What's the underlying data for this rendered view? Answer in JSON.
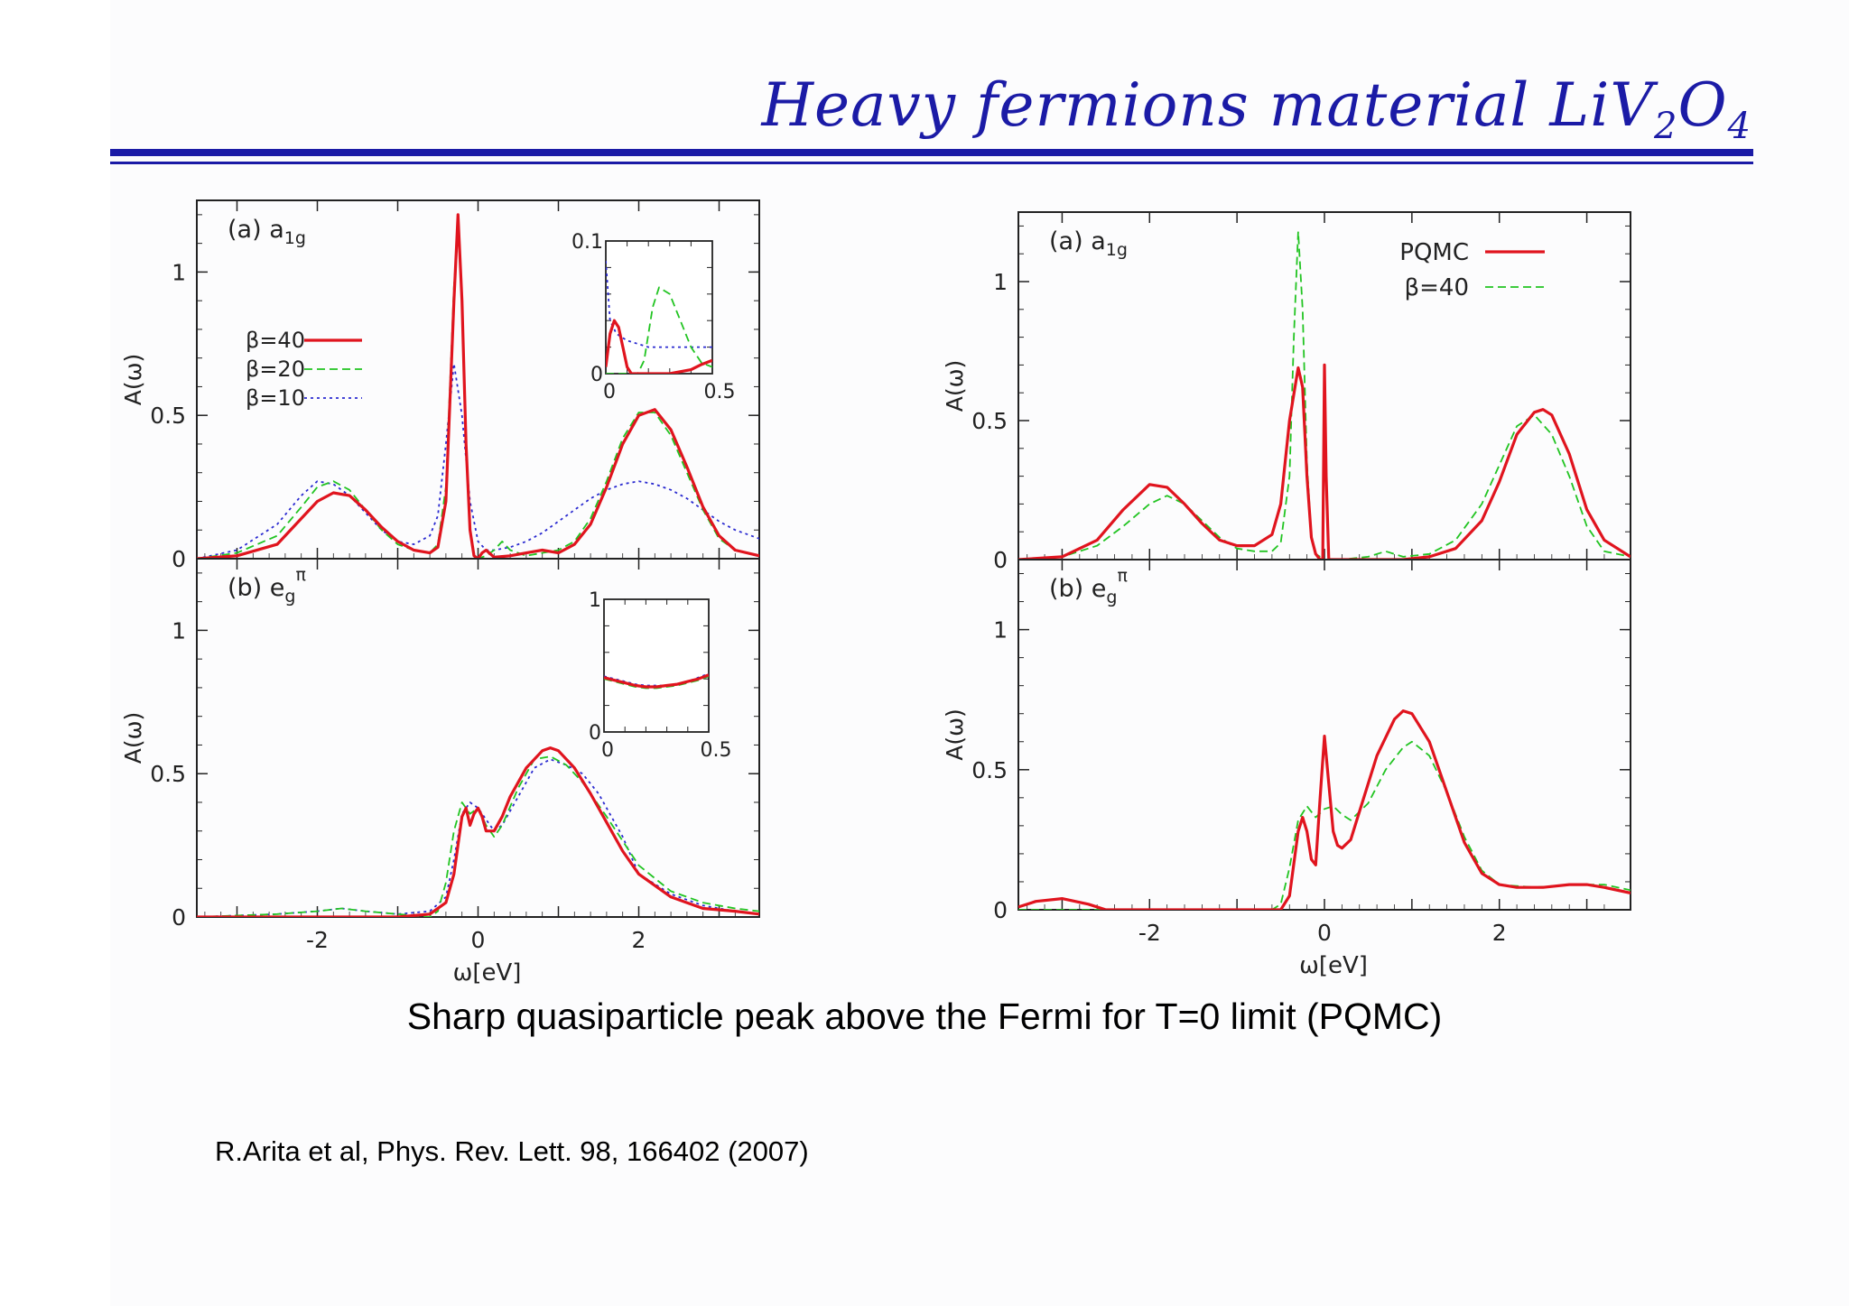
{
  "slide": {
    "title_main": "Heavy fermions material LiV",
    "title_sub1": "2",
    "title_mid": "O",
    "title_sub2": "4",
    "caption": "Sharp quasiparticle peak above the Fermi for T=0 limit (PQMC)",
    "reference": "R.Arita et al, Phys. Rev. Lett. 98, 166402 (2007)"
  },
  "colors": {
    "title": "#1b1ba6",
    "beta40": "#e0141e",
    "beta20": "#22c422",
    "beta10": "#2a2ad0",
    "pqmc": "#e0141e"
  },
  "chart_data": [
    {
      "id": "left-a1g",
      "type": "line",
      "panel_label": "(a) a",
      "panel_sub": "1g",
      "ylabel": "A(ω)",
      "xlim": [
        -3.5,
        3.5
      ],
      "ylim": [
        0,
        1.25
      ],
      "yticks": [
        "0",
        "0.5",
        "1"
      ],
      "legend": "left",
      "series": [
        {
          "name": "β=40",
          "style": "solid",
          "color": "#e0141e",
          "x": [
            -3.5,
            -3,
            -2.5,
            -2.2,
            -2,
            -1.8,
            -1.6,
            -1.4,
            -1.2,
            -1,
            -0.8,
            -0.6,
            -0.5,
            -0.4,
            -0.3,
            -0.25,
            -0.2,
            -0.15,
            -0.1,
            -0.05,
            0,
            0.05,
            0.1,
            0.2,
            0.4,
            0.6,
            0.8,
            1,
            1.2,
            1.4,
            1.6,
            1.8,
            2,
            2.2,
            2.4,
            2.6,
            2.8,
            3,
            3.2,
            3.5
          ],
          "y": [
            0,
            0.01,
            0.05,
            0.14,
            0.2,
            0.23,
            0.22,
            0.17,
            0.11,
            0.06,
            0.03,
            0.02,
            0.04,
            0.2,
            0.9,
            1.2,
            0.9,
            0.4,
            0.1,
            0.01,
            0,
            0.02,
            0.03,
            0.005,
            0.01,
            0.02,
            0.03,
            0.02,
            0.05,
            0.12,
            0.25,
            0.4,
            0.5,
            0.52,
            0.45,
            0.32,
            0.18,
            0.08,
            0.03,
            0.01
          ]
        },
        {
          "name": "β=20",
          "style": "dashed",
          "color": "#22c422",
          "x": [
            -3.5,
            -3,
            -2.5,
            -2.2,
            -2,
            -1.8,
            -1.6,
            -1.4,
            -1.2,
            -1,
            -0.8,
            -0.6,
            -0.5,
            -0.4,
            -0.3,
            -0.25,
            -0.2,
            -0.15,
            -0.1,
            -0.05,
            0,
            0.1,
            0.2,
            0.3,
            0.4,
            0.6,
            0.8,
            1,
            1.2,
            1.4,
            1.6,
            1.8,
            2,
            2.2,
            2.4,
            2.6,
            2.8,
            3,
            3.2,
            3.5
          ],
          "y": [
            0,
            0.02,
            0.08,
            0.18,
            0.25,
            0.27,
            0.24,
            0.17,
            0.1,
            0.05,
            0.03,
            0.02,
            0.05,
            0.25,
            0.95,
            1.15,
            0.9,
            0.4,
            0.1,
            0.01,
            0,
            0.01,
            0.03,
            0.06,
            0.03,
            0.01,
            0.02,
            0.03,
            0.06,
            0.14,
            0.27,
            0.42,
            0.51,
            0.51,
            0.43,
            0.3,
            0.17,
            0.07,
            0.03,
            0.01
          ]
        },
        {
          "name": "β=10",
          "style": "dotted",
          "color": "#2a2ad0",
          "x": [
            -3.5,
            -3,
            -2.5,
            -2.2,
            -2,
            -1.8,
            -1.6,
            -1.4,
            -1.2,
            -1,
            -0.8,
            -0.6,
            -0.5,
            -0.4,
            -0.3,
            -0.2,
            -0.1,
            0,
            0.1,
            0.2,
            0.4,
            0.6,
            0.8,
            1,
            1.2,
            1.4,
            1.6,
            1.8,
            2,
            2.2,
            2.4,
            2.6,
            2.8,
            3,
            3.2,
            3.5
          ],
          "y": [
            0,
            0.03,
            0.12,
            0.22,
            0.27,
            0.26,
            0.22,
            0.16,
            0.1,
            0.06,
            0.05,
            0.08,
            0.15,
            0.4,
            0.68,
            0.5,
            0.2,
            0.06,
            0.03,
            0.03,
            0.04,
            0.06,
            0.09,
            0.13,
            0.17,
            0.21,
            0.24,
            0.26,
            0.27,
            0.26,
            0.24,
            0.21,
            0.17,
            0.13,
            0.1,
            0.07
          ]
        }
      ],
      "inset": {
        "xlim": [
          0,
          0.5
        ],
        "ylim": [
          0,
          0.1
        ],
        "xticks": [
          "0",
          "0.5"
        ],
        "yticks": [
          "0",
          "0.1"
        ],
        "series": [
          {
            "name": "β=40",
            "x": [
              0,
              0.02,
              0.04,
              0.06,
              0.08,
              0.1,
              0.12,
              0.15,
              0.2,
              0.3,
              0.4,
              0.45,
              0.5
            ],
            "y": [
              0.005,
              0.03,
              0.04,
              0.035,
              0.02,
              0.005,
              0,
              0,
              0,
              0,
              0.003,
              0.007,
              0.01
            ]
          },
          {
            "name": "β=20",
            "x": [
              0,
              0.05,
              0.1,
              0.15,
              0.18,
              0.22,
              0.25,
              0.3,
              0.35,
              0.4,
              0.45,
              0.5
            ],
            "y": [
              0,
              0,
              0,
              0,
              0.01,
              0.05,
              0.065,
              0.06,
              0.04,
              0.02,
              0.008,
              0.005
            ]
          },
          {
            "name": "β=10",
            "x": [
              0,
              0.02,
              0.05,
              0.1,
              0.2,
              0.3,
              0.4,
              0.5
            ],
            "y": [
              0.085,
              0.04,
              0.03,
              0.025,
              0.02,
              0.02,
              0.02,
              0.02
            ]
          }
        ]
      }
    },
    {
      "id": "left-eg",
      "type": "line",
      "panel_label": "(b) e",
      "panel_sub": "g",
      "panel_sup": "π",
      "ylabel": "A(ω)",
      "xlabel": "ω[eV]",
      "xlim": [
        -3.5,
        3.5
      ],
      "ylim": [
        0,
        1.25
      ],
      "xticks": [
        "-2",
        "0",
        "2"
      ],
      "yticks": [
        "0",
        "0.5",
        "1"
      ],
      "series": [
        {
          "name": "β=40",
          "style": "solid",
          "color": "#e0141e",
          "x": [
            -3.5,
            -2.5,
            -1.5,
            -1,
            -0.6,
            -0.4,
            -0.3,
            -0.2,
            -0.15,
            -0.1,
            -0.05,
            0,
            0.05,
            0.1,
            0.2,
            0.3,
            0.4,
            0.6,
            0.8,
            0.9,
            1,
            1.2,
            1.4,
            1.6,
            1.8,
            2,
            2.4,
            2.8,
            3.2,
            3.5
          ],
          "y": [
            0,
            0,
            0,
            0,
            0.01,
            0.05,
            0.15,
            0.35,
            0.38,
            0.32,
            0.36,
            0.38,
            0.35,
            0.3,
            0.3,
            0.35,
            0.42,
            0.52,
            0.58,
            0.59,
            0.58,
            0.52,
            0.43,
            0.33,
            0.23,
            0.15,
            0.07,
            0.03,
            0.02,
            0.01
          ]
        },
        {
          "name": "β=20",
          "style": "dashed",
          "color": "#22c422",
          "x": [
            -3.5,
            -2.5,
            -2,
            -1.7,
            -1.4,
            -1,
            -0.6,
            -0.5,
            -0.4,
            -0.3,
            -0.2,
            -0.1,
            0,
            0.1,
            0.2,
            0.3,
            0.5,
            0.7,
            0.9,
            1.1,
            1.3,
            1.6,
            2,
            2.4,
            2.8,
            3.2,
            3.5
          ],
          "y": [
            0,
            0.01,
            0.02,
            0.03,
            0.02,
            0.01,
            0,
            0.02,
            0.12,
            0.3,
            0.4,
            0.36,
            0.38,
            0.32,
            0.28,
            0.32,
            0.45,
            0.55,
            0.56,
            0.53,
            0.47,
            0.35,
            0.18,
            0.09,
            0.05,
            0.03,
            0.02
          ]
        },
        {
          "name": "β=10",
          "style": "dotted",
          "color": "#2a2ad0",
          "x": [
            -3.5,
            -2.5,
            -2,
            -1.7,
            -1.4,
            -1,
            -0.6,
            -0.4,
            -0.3,
            -0.2,
            -0.1,
            0,
            0.1,
            0.2,
            0.3,
            0.5,
            0.7,
            0.9,
            1.1,
            1.3,
            1.5,
            1.8,
            2,
            2.4,
            2.8,
            3.2,
            3.5
          ],
          "y": [
            0,
            0.01,
            0.02,
            0.03,
            0.02,
            0.01,
            0.02,
            0.07,
            0.2,
            0.36,
            0.4,
            0.38,
            0.34,
            0.3,
            0.32,
            0.42,
            0.52,
            0.55,
            0.53,
            0.5,
            0.43,
            0.28,
            0.15,
            0.08,
            0.04,
            0.02,
            0.01
          ]
        }
      ],
      "inset": {
        "xlim": [
          0,
          0.5
        ],
        "ylim": [
          0,
          1
        ],
        "xticks": [
          "0",
          "0.5"
        ],
        "yticks": [
          "0",
          "1"
        ],
        "series": [
          {
            "name": "β=40",
            "x": [
              0,
              0.05,
              0.1,
              0.15,
              0.2,
              0.25,
              0.3,
              0.35,
              0.4,
              0.45,
              0.5
            ],
            "y": [
              0.41,
              0.39,
              0.37,
              0.35,
              0.34,
              0.34,
              0.35,
              0.36,
              0.38,
              0.4,
              0.43
            ]
          },
          {
            "name": "β=20",
            "x": [
              0,
              0.05,
              0.1,
              0.15,
              0.2,
              0.25,
              0.3,
              0.35,
              0.4,
              0.45,
              0.5
            ],
            "y": [
              0.4,
              0.38,
              0.36,
              0.34,
              0.33,
              0.33,
              0.34,
              0.35,
              0.37,
              0.39,
              0.42
            ]
          },
          {
            "name": "β=10",
            "x": [
              0,
              0.05,
              0.1,
              0.15,
              0.2,
              0.25,
              0.3,
              0.35,
              0.4,
              0.45,
              0.5
            ],
            "y": [
              0.42,
              0.4,
              0.38,
              0.36,
              0.35,
              0.35,
              0.35,
              0.36,
              0.38,
              0.41,
              0.44
            ]
          }
        ]
      }
    },
    {
      "id": "right-a1g",
      "type": "line",
      "panel_label": "(a) a",
      "panel_sub": "1g",
      "ylabel": "A(ω)",
      "xlim": [
        -3.5,
        3.5
      ],
      "ylim": [
        0,
        1.25
      ],
      "yticks": [
        "0",
        "0.5",
        "1"
      ],
      "legend": "top-right",
      "series": [
        {
          "name": "PQMC",
          "style": "solid",
          "color": "#e0141e",
          "x": [
            -3.5,
            -3,
            -2.6,
            -2.3,
            -2,
            -1.8,
            -1.6,
            -1.4,
            -1.2,
            -1,
            -0.8,
            -0.6,
            -0.5,
            -0.4,
            -0.3,
            -0.25,
            -0.2,
            -0.15,
            -0.1,
            -0.05,
            -0.02,
            0,
            0.02,
            0.05,
            0.1,
            0.3,
            0.6,
            0.9,
            1.2,
            1.5,
            1.8,
            2,
            2.2,
            2.4,
            2.5,
            2.6,
            2.8,
            3,
            3.2,
            3.5
          ],
          "y": [
            0,
            0.01,
            0.07,
            0.18,
            0.27,
            0.26,
            0.2,
            0.13,
            0.07,
            0.05,
            0.05,
            0.09,
            0.2,
            0.5,
            0.69,
            0.62,
            0.3,
            0.08,
            0.02,
            0,
            0,
            0.7,
            0.3,
            0,
            0,
            0,
            0,
            0,
            0.01,
            0.04,
            0.14,
            0.28,
            0.45,
            0.53,
            0.54,
            0.52,
            0.38,
            0.18,
            0.07,
            0.01
          ]
        },
        {
          "name": "β=40",
          "style": "dashed",
          "color": "#22c422",
          "x": [
            -3.5,
            -3,
            -2.6,
            -2.3,
            -2,
            -1.8,
            -1.6,
            -1.4,
            -1.2,
            -1,
            -0.8,
            -0.6,
            -0.5,
            -0.4,
            -0.35,
            -0.3,
            -0.25,
            -0.2,
            -0.15,
            -0.1,
            0,
            0.2,
            0.5,
            0.7,
            0.9,
            1.2,
            1.5,
            1.8,
            2,
            2.2,
            2.4,
            2.6,
            2.8,
            3,
            3.2,
            3.5
          ],
          "y": [
            0,
            0.01,
            0.05,
            0.12,
            0.2,
            0.23,
            0.2,
            0.14,
            0.08,
            0.04,
            0.03,
            0.03,
            0.06,
            0.3,
            0.8,
            1.18,
            0.9,
            0.35,
            0.08,
            0.02,
            0,
            0,
            0.01,
            0.03,
            0.01,
            0.02,
            0.07,
            0.2,
            0.34,
            0.48,
            0.52,
            0.45,
            0.3,
            0.12,
            0.03,
            0.01
          ]
        }
      ]
    },
    {
      "id": "right-eg",
      "type": "line",
      "panel_label": "(b) e",
      "panel_sub": "g",
      "panel_sup": "π",
      "ylabel": "A(ω)",
      "xlabel": "ω[eV]",
      "xlim": [
        -3.5,
        3.5
      ],
      "ylim": [
        0,
        1.25
      ],
      "xticks": [
        "-2",
        "0",
        "2"
      ],
      "yticks": [
        "0",
        "0.5",
        "1"
      ],
      "series": [
        {
          "name": "PQMC",
          "style": "solid",
          "color": "#e0141e",
          "x": [
            -3.5,
            -3.3,
            -3,
            -2.7,
            -2.5,
            -2,
            -1,
            -0.5,
            -0.4,
            -0.3,
            -0.25,
            -0.2,
            -0.15,
            -0.1,
            -0.05,
            0,
            0.05,
            0.1,
            0.15,
            0.2,
            0.3,
            0.4,
            0.6,
            0.8,
            0.9,
            1,
            1.2,
            1.4,
            1.6,
            1.8,
            2,
            2.2,
            2.5,
            2.8,
            3,
            3.2,
            3.5
          ],
          "y": [
            0.01,
            0.03,
            0.04,
            0.02,
            0,
            0,
            0,
            0,
            0.05,
            0.28,
            0.33,
            0.28,
            0.18,
            0.16,
            0.4,
            0.62,
            0.45,
            0.28,
            0.23,
            0.22,
            0.25,
            0.35,
            0.55,
            0.68,
            0.71,
            0.7,
            0.6,
            0.42,
            0.24,
            0.13,
            0.09,
            0.08,
            0.08,
            0.09,
            0.09,
            0.08,
            0.06
          ]
        },
        {
          "name": "β=40",
          "style": "dashed",
          "color": "#22c422",
          "x": [
            -3.5,
            -2,
            -1,
            -0.6,
            -0.5,
            -0.4,
            -0.3,
            -0.2,
            -0.1,
            0,
            0.1,
            0.2,
            0.3,
            0.5,
            0.7,
            0.9,
            1,
            1.2,
            1.4,
            1.6,
            1.8,
            2,
            2.4,
            2.8,
            3.2,
            3.5
          ],
          "y": [
            0,
            0,
            0,
            0,
            0.02,
            0.15,
            0.32,
            0.37,
            0.33,
            0.36,
            0.37,
            0.34,
            0.32,
            0.38,
            0.5,
            0.58,
            0.6,
            0.55,
            0.42,
            0.26,
            0.14,
            0.09,
            0.08,
            0.09,
            0.09,
            0.07
          ]
        }
      ]
    }
  ]
}
